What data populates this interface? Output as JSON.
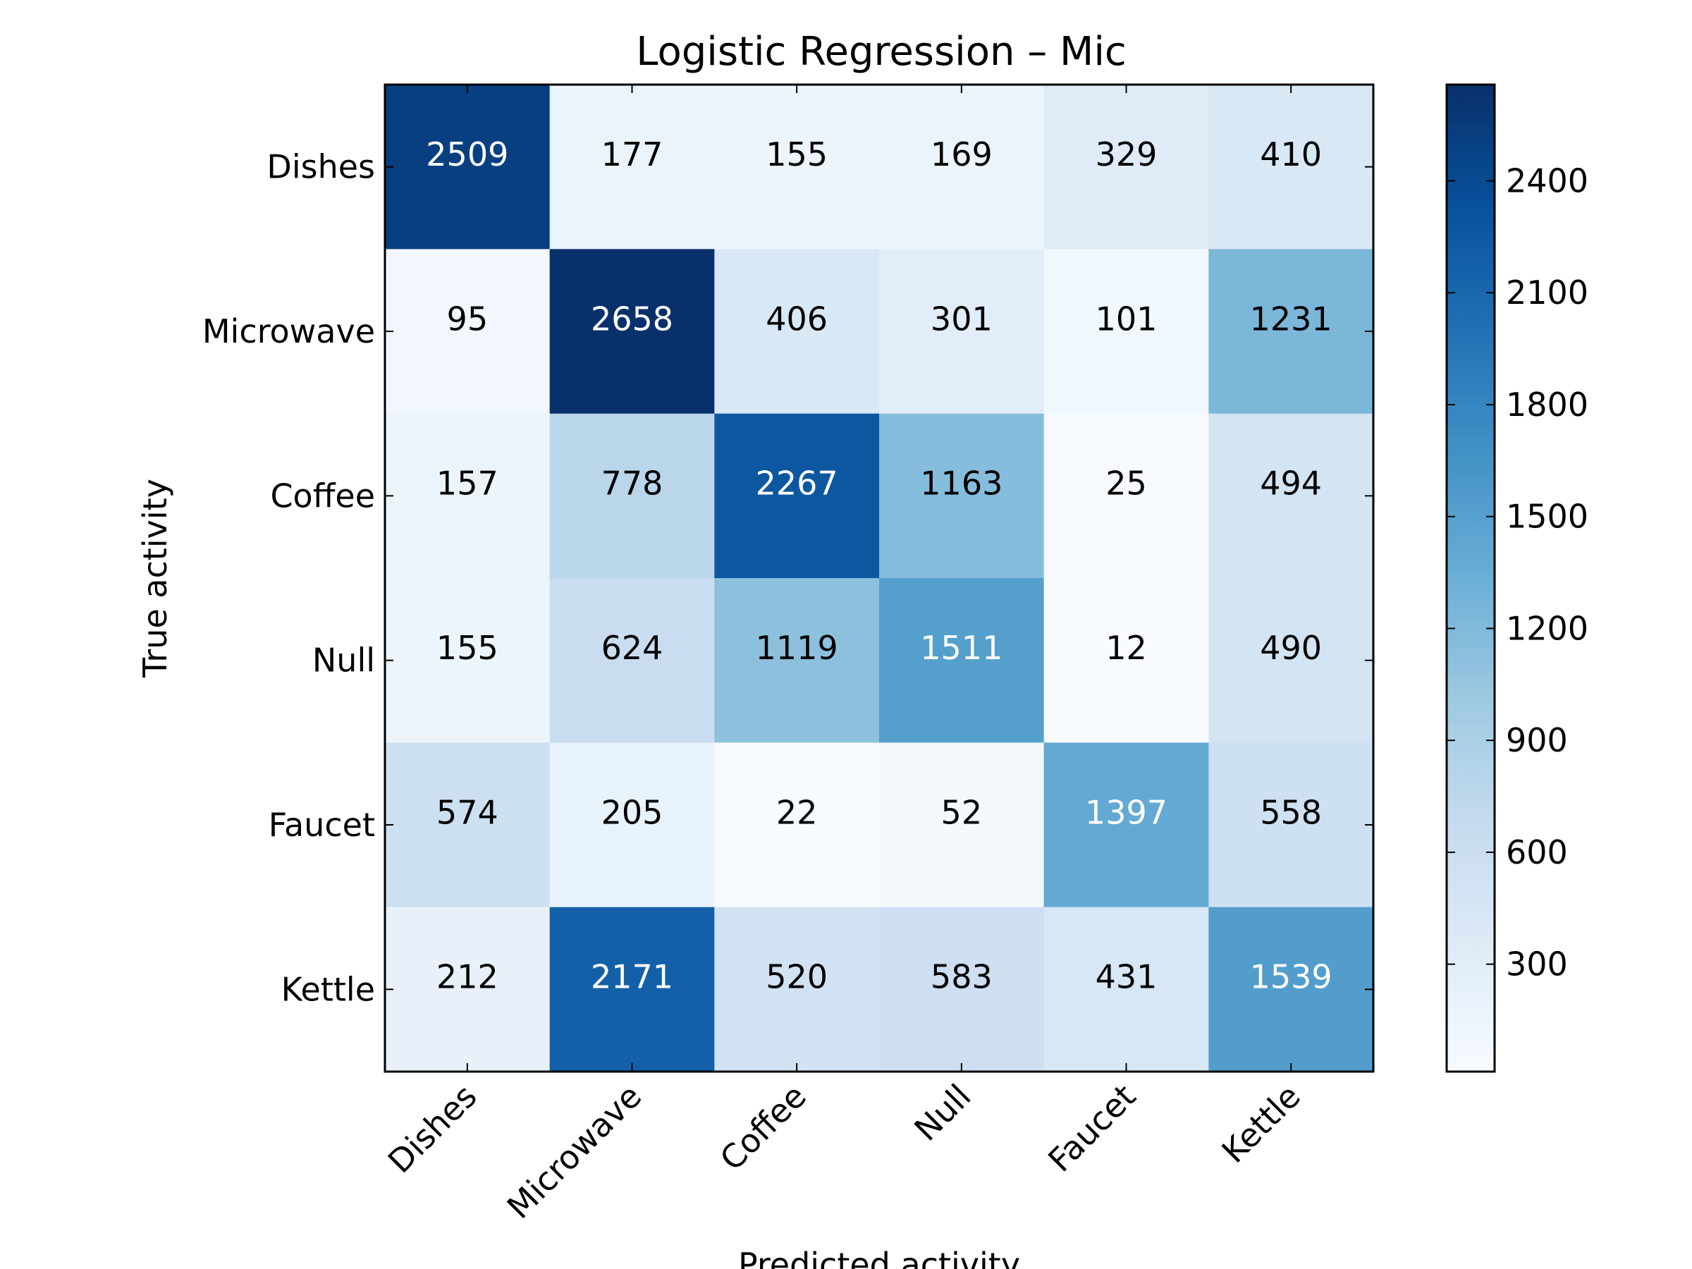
{
  "chart_data": {
    "type": "heatmap",
    "title": "Logistic Regression – Mic",
    "xlabel": "Predicted activity",
    "ylabel": "True activity",
    "x_categories": [
      "Dishes",
      "Microwave",
      "Coffee",
      "Null",
      "Faucet",
      "Kettle"
    ],
    "y_categories": [
      "Dishes",
      "Microwave",
      "Coffee",
      "Null",
      "Faucet",
      "Kettle"
    ],
    "values": [
      [
        2509,
        177,
        155,
        169,
        329,
        410
      ],
      [
        95,
        2658,
        406,
        301,
        101,
        1231
      ],
      [
        157,
        778,
        2267,
        1163,
        25,
        494
      ],
      [
        155,
        624,
        1119,
        1511,
        12,
        490
      ],
      [
        574,
        205,
        22,
        52,
        1397,
        558
      ],
      [
        212,
        2171,
        520,
        583,
        431,
        1539
      ]
    ],
    "colormap": "Blues",
    "colorbar": {
      "range": [
        12,
        2658
      ],
      "ticks": [
        300,
        600,
        900,
        1200,
        1500,
        1800,
        2100,
        2400
      ]
    },
    "text_colors": {
      "dark_cell": "#ffffff",
      "light_cell": "#000000"
    },
    "grid": false
  }
}
